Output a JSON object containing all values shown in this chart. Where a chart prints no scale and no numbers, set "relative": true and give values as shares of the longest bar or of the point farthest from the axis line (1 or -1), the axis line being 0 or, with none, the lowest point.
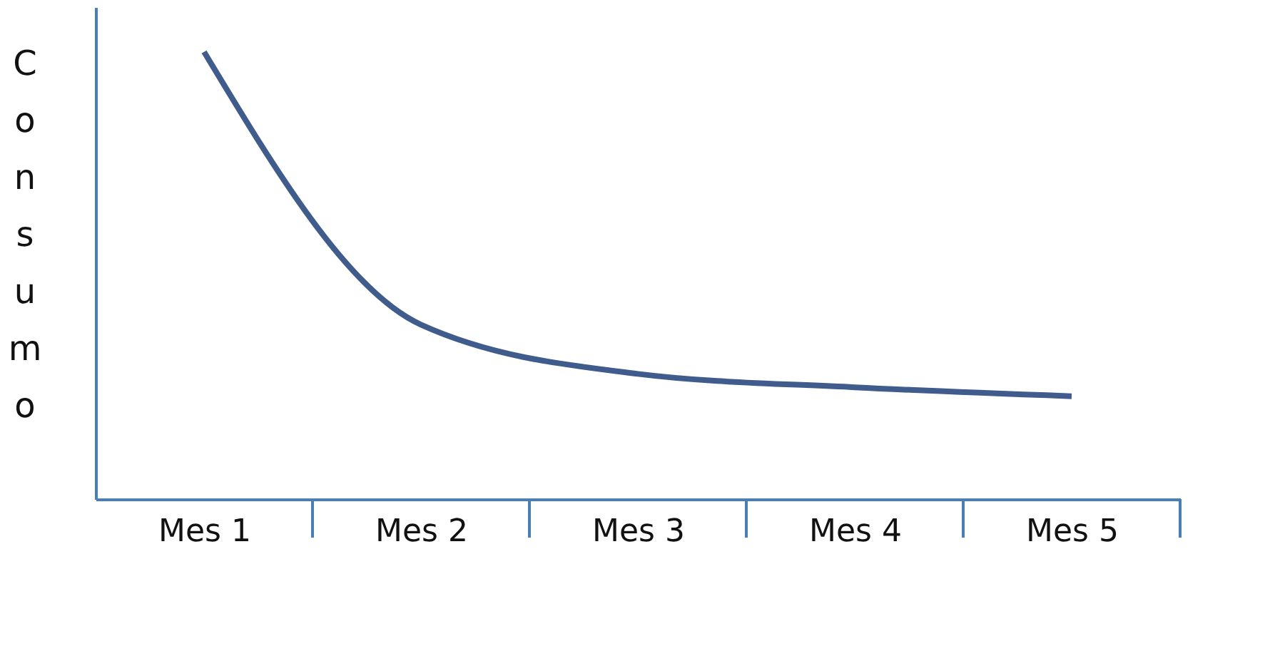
{
  "chart_data": {
    "type": "line",
    "ylabel": "Consumo",
    "relative": true,
    "categories": [
      "Mes 1",
      "Mes 2",
      "Mes 3",
      "Mes 4",
      "Mes 5"
    ],
    "series": [
      {
        "color": "#3f5c8c",
        "values": [
          1,
          0.39,
          0.28,
          0.25,
          0.23
        ]
      }
    ],
    "grid": false,
    "marker": "none",
    "line_style": "solid"
  }
}
